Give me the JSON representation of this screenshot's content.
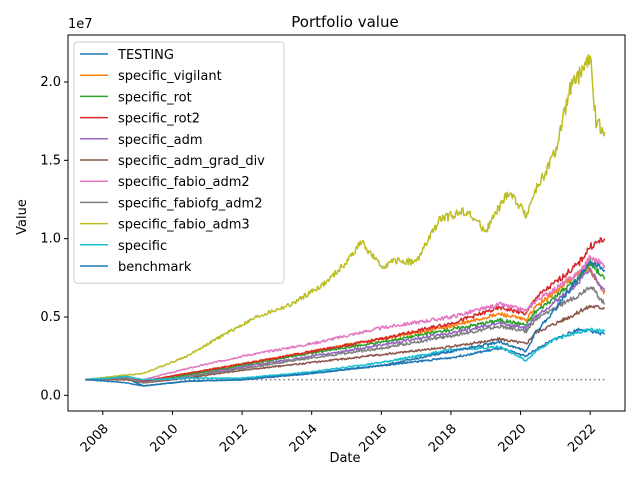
{
  "chart_data": {
    "type": "line",
    "title": "Portfolio value",
    "xlabel": "Date",
    "ylabel": "Value",
    "y_offset_text": "1e7",
    "xlim": [
      "2007-01-01",
      "2023-01-01"
    ],
    "ylim": [
      -0.1,
      2.3
    ],
    "y_units_multiplier": 10000000,
    "x_ticks": [
      "2008",
      "2010",
      "2012",
      "2014",
      "2016",
      "2018",
      "2020",
      "2022"
    ],
    "y_ticks": [
      "0.0",
      "0.5",
      "1.0",
      "1.5",
      "2.0"
    ],
    "legend_position": "upper-left",
    "reference_line": {
      "style": "dotted",
      "color": "#777777",
      "y": 0.1,
      "x_start": "2007-07-01",
      "x_end": "2022-06-01"
    },
    "series": [
      {
        "name": "TESTING",
        "color": "#1f77b4",
        "x": [
          "2007-07",
          "2008-09",
          "2009-03",
          "2010-06",
          "2012-01",
          "2014-01",
          "2016-01",
          "2018-01",
          "2019-06",
          "2020-03",
          "2020-06",
          "2021-01",
          "2021-09",
          "2022-01",
          "2022-06"
        ],
        "y": [
          0.1,
          0.11,
          0.06,
          0.09,
          0.1,
          0.14,
          0.19,
          0.24,
          0.3,
          0.25,
          0.29,
          0.36,
          0.42,
          0.41,
          0.39
        ]
      },
      {
        "name": "specific_vigilant",
        "color": "#ff7f0e",
        "x": [
          "2007-07",
          "2008-09",
          "2009-03",
          "2010-06",
          "2012-01",
          "2014-01",
          "2016-01",
          "2018-01",
          "2019-06",
          "2020-03",
          "2020-06",
          "2021-01",
          "2021-09",
          "2022-01",
          "2022-06"
        ],
        "y": [
          0.1,
          0.11,
          0.09,
          0.14,
          0.2,
          0.28,
          0.36,
          0.44,
          0.52,
          0.48,
          0.56,
          0.66,
          0.78,
          0.8,
          0.65
        ]
      },
      {
        "name": "specific_rot",
        "color": "#2ca02c",
        "x": [
          "2007-07",
          "2008-09",
          "2009-03",
          "2010-06",
          "2012-01",
          "2014-01",
          "2016-01",
          "2018-01",
          "2019-06",
          "2020-03",
          "2020-06",
          "2021-01",
          "2021-09",
          "2022-01",
          "2022-06"
        ],
        "y": [
          0.1,
          0.11,
          0.08,
          0.13,
          0.19,
          0.27,
          0.34,
          0.42,
          0.48,
          0.45,
          0.53,
          0.63,
          0.75,
          0.85,
          0.74
        ]
      },
      {
        "name": "specific_rot2",
        "color": "#d62728",
        "x": [
          "2007-07",
          "2008-09",
          "2009-03",
          "2010-06",
          "2012-01",
          "2014-01",
          "2016-01",
          "2018-01",
          "2019-06",
          "2020-03",
          "2020-06",
          "2021-01",
          "2021-09",
          "2022-01",
          "2022-06"
        ],
        "y": [
          0.1,
          0.11,
          0.09,
          0.14,
          0.2,
          0.28,
          0.36,
          0.46,
          0.56,
          0.52,
          0.62,
          0.72,
          0.84,
          0.95,
          1.0
        ]
      },
      {
        "name": "specific_adm",
        "color": "#9467bd",
        "x": [
          "2007-07",
          "2008-09",
          "2009-03",
          "2010-06",
          "2012-01",
          "2014-01",
          "2016-01",
          "2018-01",
          "2019-06",
          "2020-03",
          "2020-06",
          "2021-01",
          "2021-09",
          "2022-01",
          "2022-06"
        ],
        "y": [
          0.1,
          0.11,
          0.08,
          0.12,
          0.18,
          0.25,
          0.32,
          0.4,
          0.46,
          0.43,
          0.5,
          0.6,
          0.72,
          0.8,
          0.66
        ]
      },
      {
        "name": "specific_adm_grad_div",
        "color": "#8c564b",
        "x": [
          "2007-07",
          "2008-09",
          "2009-03",
          "2010-06",
          "2012-01",
          "2014-01",
          "2016-01",
          "2018-01",
          "2019-06",
          "2020-03",
          "2020-06",
          "2021-01",
          "2021-09",
          "2022-01",
          "2022-06"
        ],
        "y": [
          0.1,
          0.1,
          0.08,
          0.11,
          0.16,
          0.21,
          0.26,
          0.31,
          0.36,
          0.33,
          0.4,
          0.46,
          0.53,
          0.57,
          0.56
        ]
      },
      {
        "name": "specific_fabio_adm2",
        "color": "#e377c2",
        "x": [
          "2007-07",
          "2008-09",
          "2009-03",
          "2010-06",
          "2012-01",
          "2014-01",
          "2016-01",
          "2018-01",
          "2019-06",
          "2020-03",
          "2020-06",
          "2021-01",
          "2021-09",
          "2022-01",
          "2022-06"
        ],
        "y": [
          0.1,
          0.12,
          0.1,
          0.17,
          0.25,
          0.33,
          0.43,
          0.5,
          0.58,
          0.54,
          0.6,
          0.68,
          0.78,
          0.88,
          0.83
        ]
      },
      {
        "name": "specific_fabiofg_adm2",
        "color": "#7f7f7f",
        "x": [
          "2007-07",
          "2008-09",
          "2009-03",
          "2010-06",
          "2012-01",
          "2014-01",
          "2016-01",
          "2018-01",
          "2019-06",
          "2020-03",
          "2020-06",
          "2021-01",
          "2021-09",
          "2022-01",
          "2022-06"
        ],
        "y": [
          0.1,
          0.11,
          0.08,
          0.12,
          0.17,
          0.24,
          0.3,
          0.38,
          0.44,
          0.41,
          0.48,
          0.56,
          0.64,
          0.7,
          0.58
        ]
      },
      {
        "name": "specific_fabio_adm3",
        "color": "#bcbd22",
        "x": [
          "2007-07",
          "2008-09",
          "2009-03",
          "2010-06",
          "2011-06",
          "2012-06",
          "2013-06",
          "2014-06",
          "2015-01",
          "2015-06",
          "2016-01",
          "2016-06",
          "2017-01",
          "2017-09",
          "2018-06",
          "2019-01",
          "2019-09",
          "2020-03",
          "2020-06",
          "2021-01",
          "2021-06",
          "2022-01",
          "2022-03",
          "2022-06"
        ],
        "y": [
          0.1,
          0.13,
          0.14,
          0.25,
          0.38,
          0.5,
          0.58,
          0.72,
          0.85,
          0.98,
          0.82,
          0.86,
          0.85,
          1.12,
          1.18,
          1.05,
          1.3,
          1.15,
          1.3,
          1.55,
          1.95,
          2.15,
          1.75,
          1.68
        ]
      },
      {
        "name": "specific",
        "color": "#17becf",
        "x": [
          "2007-07",
          "2008-09",
          "2009-03",
          "2010-06",
          "2012-01",
          "2014-01",
          "2016-01",
          "2018-01",
          "2019-06",
          "2020-03",
          "2020-06",
          "2021-01",
          "2021-09",
          "2022-01",
          "2022-06"
        ],
        "y": [
          0.1,
          0.12,
          0.1,
          0.11,
          0.11,
          0.15,
          0.21,
          0.29,
          0.31,
          0.22,
          0.28,
          0.36,
          0.4,
          0.42,
          0.41
        ]
      },
      {
        "name": "benchmark",
        "color": "#1f77b4",
        "x": [
          "2007-07",
          "2008-09",
          "2009-03",
          "2010-06",
          "2012-01",
          "2014-01",
          "2016-01",
          "2018-01",
          "2019-06",
          "2020-03",
          "2020-06",
          "2021-01",
          "2021-09",
          "2022-01",
          "2022-06"
        ],
        "y": [
          0.1,
          0.08,
          0.06,
          0.09,
          0.1,
          0.14,
          0.19,
          0.28,
          0.34,
          0.28,
          0.4,
          0.55,
          0.75,
          0.85,
          0.8
        ]
      }
    ]
  }
}
